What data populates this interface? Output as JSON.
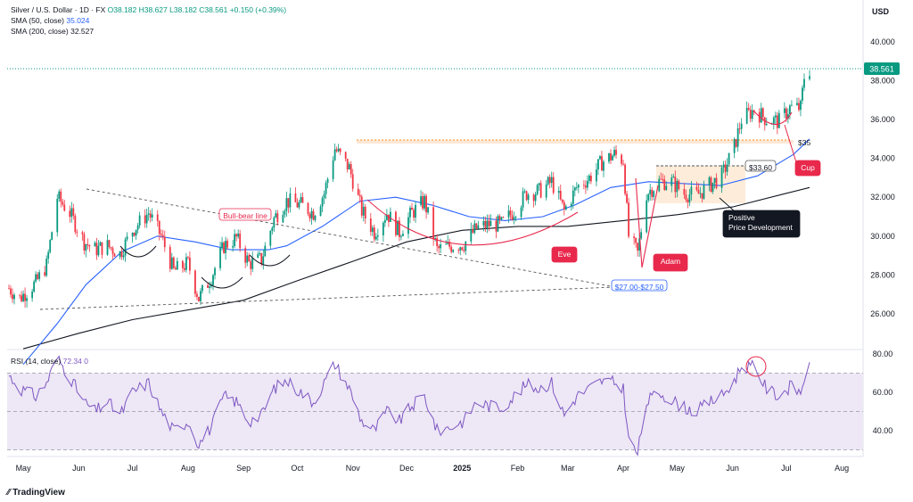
{
  "header": {
    "title_line": "Silver / U.S. Dollar · 1D · FX",
    "ohlc": "O38.182 H38.627 L38.182 C38.561 +0.150 (+0.39%)",
    "sma50_label": "SMA (50, close)",
    "sma50_value": "35.024",
    "sma200_label": "SMA (200, close)",
    "sma200_value": "32.527",
    "currency": "USD",
    "brand": "TradingView"
  },
  "colors": {
    "up": "#089981",
    "down": "#f23645",
    "sma50": "#2962ff",
    "sma200": "#131722",
    "rsi": "#7e57c2",
    "rsi_band": "#ede7f6",
    "accent_red": "#e8294c",
    "price_line": "#089981"
  },
  "chart_data": {
    "type": "candlestick",
    "price_axis": {
      "ticks": [
        26,
        28,
        30,
        32,
        34,
        36,
        38,
        40
      ],
      "tick_labels": [
        "26.000",
        "28.000",
        "30.000",
        "32.000",
        "34.000",
        "36.000",
        "38.000",
        "40.000"
      ]
    },
    "time_axis": {
      "labels": [
        "May",
        "Jun",
        "Jul",
        "Aug",
        "Sep",
        "Oct",
        "Nov",
        "Dec",
        "2025",
        "Feb",
        "Mar",
        "Apr",
        "May",
        "Jun",
        "Jul",
        "Aug"
      ]
    },
    "last_price": {
      "label": "38.561",
      "value": 38.561
    },
    "close_path": [
      {
        "d": "2024-04-22",
        "c": 27.4
      },
      {
        "d": "2024-04-29",
        "c": 26.8
      },
      {
        "d": "2024-05-08",
        "c": 27.6
      },
      {
        "d": "2024-05-14",
        "c": 28.5
      },
      {
        "d": "2024-05-20",
        "c": 32.0
      },
      {
        "d": "2024-05-27",
        "c": 31.2
      },
      {
        "d": "2024-06-04",
        "c": 29.7
      },
      {
        "d": "2024-06-10",
        "c": 29.3
      },
      {
        "d": "2024-06-17",
        "c": 29.5
      },
      {
        "d": "2024-06-24",
        "c": 29.1
      },
      {
        "d": "2024-07-01",
        "c": 30.3
      },
      {
        "d": "2024-07-10",
        "c": 31.2
      },
      {
        "d": "2024-07-17",
        "c": 30.0
      },
      {
        "d": "2024-07-24",
        "c": 28.2
      },
      {
        "d": "2024-08-01",
        "c": 28.6
      },
      {
        "d": "2024-08-07",
        "c": 26.8
      },
      {
        "d": "2024-08-14",
        "c": 27.9
      },
      {
        "d": "2024-08-21",
        "c": 29.5
      },
      {
        "d": "2024-08-28",
        "c": 29.9
      },
      {
        "d": "2024-09-04",
        "c": 28.6
      },
      {
        "d": "2024-09-11",
        "c": 28.8
      },
      {
        "d": "2024-09-18",
        "c": 30.9
      },
      {
        "d": "2024-09-25",
        "c": 31.8
      },
      {
        "d": "2024-10-03",
        "c": 31.6
      },
      {
        "d": "2024-10-10",
        "c": 31.2
      },
      {
        "d": "2024-10-16",
        "c": 32.2
      },
      {
        "d": "2024-10-22",
        "c": 34.5
      },
      {
        "d": "2024-10-30",
        "c": 33.5
      },
      {
        "d": "2024-11-06",
        "c": 31.3
      },
      {
        "d": "2024-11-13",
        "c": 30.2
      },
      {
        "d": "2024-11-20",
        "c": 31.2
      },
      {
        "d": "2024-11-27",
        "c": 30.2
      },
      {
        "d": "2024-12-04",
        "c": 31.2
      },
      {
        "d": "2024-12-11",
        "c": 31.8
      },
      {
        "d": "2024-12-18",
        "c": 29.3
      },
      {
        "d": "2024-12-26",
        "c": 29.5
      },
      {
        "d": "2025-01-02",
        "c": 29.6
      },
      {
        "d": "2025-01-09",
        "c": 30.4
      },
      {
        "d": "2025-01-16",
        "c": 30.6
      },
      {
        "d": "2025-01-23",
        "c": 30.6
      },
      {
        "d": "2025-01-30",
        "c": 31.3
      },
      {
        "d": "2025-02-06",
        "c": 32.2
      },
      {
        "d": "2025-02-13",
        "c": 32.3
      },
      {
        "d": "2025-02-20",
        "c": 32.8
      },
      {
        "d": "2025-02-27",
        "c": 31.3
      },
      {
        "d": "2025-03-06",
        "c": 32.5
      },
      {
        "d": "2025-03-13",
        "c": 33.0
      },
      {
        "d": "2025-03-20",
        "c": 33.8
      },
      {
        "d": "2025-03-27",
        "c": 34.2
      },
      {
        "d": "2025-04-01",
        "c": 33.9
      },
      {
        "d": "2025-04-04",
        "c": 30.0
      },
      {
        "d": "2025-04-09",
        "c": 29.1
      },
      {
        "d": "2025-04-14",
        "c": 32.2
      },
      {
        "d": "2025-04-21",
        "c": 32.8
      },
      {
        "d": "2025-04-28",
        "c": 32.8
      },
      {
        "d": "2025-05-05",
        "c": 32.2
      },
      {
        "d": "2025-05-12",
        "c": 32.1
      },
      {
        "d": "2025-05-19",
        "c": 32.6
      },
      {
        "d": "2025-05-26",
        "c": 33.1
      },
      {
        "d": "2025-06-02",
        "c": 34.6
      },
      {
        "d": "2025-06-06",
        "c": 36.0
      },
      {
        "d": "2025-06-13",
        "c": 36.5
      },
      {
        "d": "2025-06-20",
        "c": 36.0
      },
      {
        "d": "2025-06-27",
        "c": 35.9
      },
      {
        "d": "2025-07-03",
        "c": 36.6
      },
      {
        "d": "2025-07-09",
        "c": 36.6
      },
      {
        "d": "2025-07-11",
        "c": 38.2
      },
      {
        "d": "2025-07-14",
        "c": 38.56
      }
    ],
    "sma50": [
      {
        "d": "2024-05-01",
        "v": 23.4
      },
      {
        "d": "2024-05-20",
        "v": 25.5
      },
      {
        "d": "2024-06-05",
        "v": 27.5
      },
      {
        "d": "2024-06-25",
        "v": 29.2
      },
      {
        "d": "2024-07-15",
        "v": 30.0
      },
      {
        "d": "2024-08-05",
        "v": 29.7
      },
      {
        "d": "2024-08-25",
        "v": 29.3
      },
      {
        "d": "2024-09-15",
        "v": 29.3
      },
      {
        "d": "2024-09-25",
        "v": 29.5
      },
      {
        "d": "2024-10-15",
        "v": 30.5
      },
      {
        "d": "2024-11-05",
        "v": 31.8
      },
      {
        "d": "2024-11-25",
        "v": 32.0
      },
      {
        "d": "2024-12-15",
        "v": 31.6
      },
      {
        "d": "2025-01-05",
        "v": 31.0
      },
      {
        "d": "2025-01-25",
        "v": 30.8
      },
      {
        "d": "2025-02-15",
        "v": 31.0
      },
      {
        "d": "2025-03-05",
        "v": 31.6
      },
      {
        "d": "2025-03-25",
        "v": 32.5
      },
      {
        "d": "2025-04-15",
        "v": 32.8
      },
      {
        "d": "2025-05-05",
        "v": 32.7
      },
      {
        "d": "2025-05-25",
        "v": 32.6
      },
      {
        "d": "2025-06-15",
        "v": 33.1
      },
      {
        "d": "2025-07-05",
        "v": 34.2
      },
      {
        "d": "2025-07-14",
        "v": 35.0
      }
    ],
    "sma200": [
      {
        "d": "2024-05-01",
        "v": 24.2
      },
      {
        "d": "2024-06-01",
        "v": 25.0
      },
      {
        "d": "2024-07-01",
        "v": 25.7
      },
      {
        "d": "2024-08-01",
        "v": 26.2
      },
      {
        "d": "2024-09-01",
        "v": 26.7
      },
      {
        "d": "2024-10-01",
        "v": 27.7
      },
      {
        "d": "2024-11-01",
        "v": 28.7
      },
      {
        "d": "2024-12-01",
        "v": 29.7
      },
      {
        "d": "2025-01-01",
        "v": 30.3
      },
      {
        "d": "2025-02-01",
        "v": 30.5
      },
      {
        "d": "2025-03-01",
        "v": 30.5
      },
      {
        "d": "2025-04-01",
        "v": 30.8
      },
      {
        "d": "2025-05-01",
        "v": 31.1
      },
      {
        "d": "2025-06-01",
        "v": 31.5
      },
      {
        "d": "2025-07-01",
        "v": 32.2
      },
      {
        "d": "2025-07-14",
        "v": 32.5
      }
    ],
    "annotations": {
      "bull_bear_line": "Bull-bear line",
      "eve": "Eve",
      "adam": "Adam",
      "cup": "Cup",
      "support_zone": "$27.00-$27.50",
      "level_3360": "$33.60",
      "level_35": "$35",
      "positive_line1": "Positive",
      "positive_line2": "Price Development"
    },
    "rsi": {
      "label": "RSI (14, close)",
      "value_label": "72.34",
      "extra_label": "0",
      "ticks": [
        40,
        60,
        80
      ],
      "tick_labels": [
        "40.00",
        "60.00",
        "80.00"
      ],
      "upper": 70,
      "middle": 50,
      "lower": 30,
      "values": [
        {
          "d": "2024-04-22",
          "v": 70
        },
        {
          "d": "2024-04-29",
          "v": 62
        },
        {
          "d": "2024-05-08",
          "v": 58
        },
        {
          "d": "2024-05-14",
          "v": 65
        },
        {
          "d": "2024-05-20",
          "v": 78
        },
        {
          "d": "2024-05-27",
          "v": 68
        },
        {
          "d": "2024-06-04",
          "v": 55
        },
        {
          "d": "2024-06-10",
          "v": 50
        },
        {
          "d": "2024-06-17",
          "v": 55
        },
        {
          "d": "2024-06-24",
          "v": 48
        },
        {
          "d": "2024-07-01",
          "v": 60
        },
        {
          "d": "2024-07-10",
          "v": 65
        },
        {
          "d": "2024-07-17",
          "v": 50
        },
        {
          "d": "2024-07-24",
          "v": 40
        },
        {
          "d": "2024-08-01",
          "v": 45
        },
        {
          "d": "2024-08-07",
          "v": 33
        },
        {
          "d": "2024-08-14",
          "v": 42
        },
        {
          "d": "2024-08-21",
          "v": 58
        },
        {
          "d": "2024-08-28",
          "v": 55
        },
        {
          "d": "2024-09-04",
          "v": 45
        },
        {
          "d": "2024-09-11",
          "v": 48
        },
        {
          "d": "2024-09-18",
          "v": 62
        },
        {
          "d": "2024-09-25",
          "v": 66
        },
        {
          "d": "2024-10-03",
          "v": 60
        },
        {
          "d": "2024-10-10",
          "v": 55
        },
        {
          "d": "2024-10-16",
          "v": 65
        },
        {
          "d": "2024-10-22",
          "v": 75
        },
        {
          "d": "2024-10-30",
          "v": 62
        },
        {
          "d": "2024-11-06",
          "v": 45
        },
        {
          "d": "2024-11-13",
          "v": 40
        },
        {
          "d": "2024-11-20",
          "v": 50
        },
        {
          "d": "2024-11-27",
          "v": 45
        },
        {
          "d": "2024-12-04",
          "v": 53
        },
        {
          "d": "2024-12-11",
          "v": 58
        },
        {
          "d": "2024-12-18",
          "v": 40
        },
        {
          "d": "2024-12-26",
          "v": 42
        },
        {
          "d": "2025-01-02",
          "v": 45
        },
        {
          "d": "2025-01-09",
          "v": 55
        },
        {
          "d": "2025-01-16",
          "v": 53
        },
        {
          "d": "2025-01-23",
          "v": 52
        },
        {
          "d": "2025-01-30",
          "v": 58
        },
        {
          "d": "2025-02-06",
          "v": 64
        },
        {
          "d": "2025-02-13",
          "v": 62
        },
        {
          "d": "2025-02-20",
          "v": 65
        },
        {
          "d": "2025-02-27",
          "v": 48
        },
        {
          "d": "2025-03-06",
          "v": 58
        },
        {
          "d": "2025-03-13",
          "v": 62
        },
        {
          "d": "2025-03-20",
          "v": 66
        },
        {
          "d": "2025-03-27",
          "v": 65
        },
        {
          "d": "2025-04-01",
          "v": 62
        },
        {
          "d": "2025-04-04",
          "v": 35
        },
        {
          "d": "2025-04-09",
          "v": 28
        },
        {
          "d": "2025-04-14",
          "v": 55
        },
        {
          "d": "2025-04-21",
          "v": 60
        },
        {
          "d": "2025-04-28",
          "v": 56
        },
        {
          "d": "2025-05-05",
          "v": 52
        },
        {
          "d": "2025-05-12",
          "v": 50
        },
        {
          "d": "2025-05-19",
          "v": 55
        },
        {
          "d": "2025-05-26",
          "v": 58
        },
        {
          "d": "2025-06-02",
          "v": 66
        },
        {
          "d": "2025-06-06",
          "v": 74
        },
        {
          "d": "2025-06-13",
          "v": 73
        },
        {
          "d": "2025-06-20",
          "v": 62
        },
        {
          "d": "2025-06-27",
          "v": 58
        },
        {
          "d": "2025-07-03",
          "v": 63
        },
        {
          "d": "2025-07-09",
          "v": 60
        },
        {
          "d": "2025-07-11",
          "v": 68
        },
        {
          "d": "2025-07-14",
          "v": 72.3
        }
      ]
    }
  }
}
